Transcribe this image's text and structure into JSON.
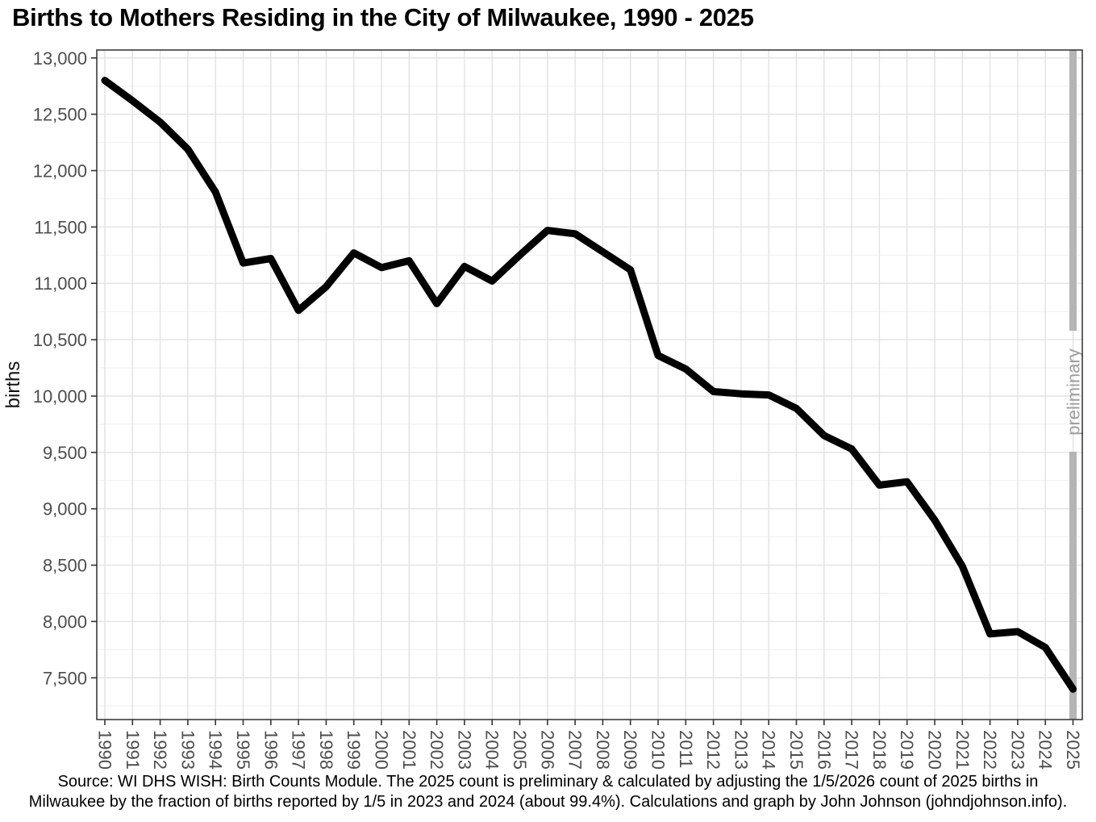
{
  "page": {
    "title": "Births to Mothers Residing in the City of Milwaukee, 1990 - 2025",
    "caption_line1": "Source: WI DHS WISH: Birth Counts Module. The 2025 count is preliminary & calculated by adjusting the 1/5/2026 count of 2025 births in",
    "caption_line2": "Milwaukee by the fraction of births reported by 1/5 in 2023 and 2024 (about 99.4%). Calculations and graph by John Johnson (johndjohnson.info)."
  },
  "chart_data": {
    "type": "line",
    "title": "Births to Mothers Residing in the City of Milwaukee, 1990 - 2025",
    "xlabel": "",
    "ylabel": "births",
    "x": [
      1990,
      1991,
      1992,
      1993,
      1994,
      1995,
      1996,
      1997,
      1998,
      1999,
      2000,
      2001,
      2002,
      2003,
      2004,
      2005,
      2006,
      2007,
      2008,
      2009,
      2010,
      2011,
      2012,
      2013,
      2014,
      2015,
      2016,
      2017,
      2018,
      2019,
      2020,
      2021,
      2022,
      2023,
      2024,
      2025
    ],
    "values": [
      12800,
      12620,
      12430,
      12190,
      11810,
      11180,
      11220,
      10760,
      10970,
      11270,
      11140,
      11200,
      10820,
      11150,
      11020,
      11250,
      11470,
      11440,
      11280,
      11120,
      10360,
      10240,
      10040,
      10020,
      10010,
      9890,
      9650,
      9530,
      9210,
      9240,
      8900,
      8490,
      7890,
      7910,
      7770,
      7400
    ],
    "yticks": [
      7500,
      8000,
      8500,
      9000,
      9500,
      10000,
      10500,
      11000,
      11500,
      12000,
      12500,
      13000
    ],
    "ylim": [
      7130,
      13070
    ],
    "grid": "horizontal major every 500 with minor every 250; vertical major every year",
    "legend": "none",
    "line_color": "#000000",
    "annotation": {
      "label": "preliminary",
      "x": 2025,
      "band_color": "#b5b5b5",
      "text_color": "#9e9e9e"
    },
    "colors": {
      "grid_major": "#e2e2e2",
      "grid_minor": "#efefef",
      "panel_border": "#2f2f2f",
      "axis_text": "#4d4d4d",
      "tick": "#333333"
    }
  }
}
